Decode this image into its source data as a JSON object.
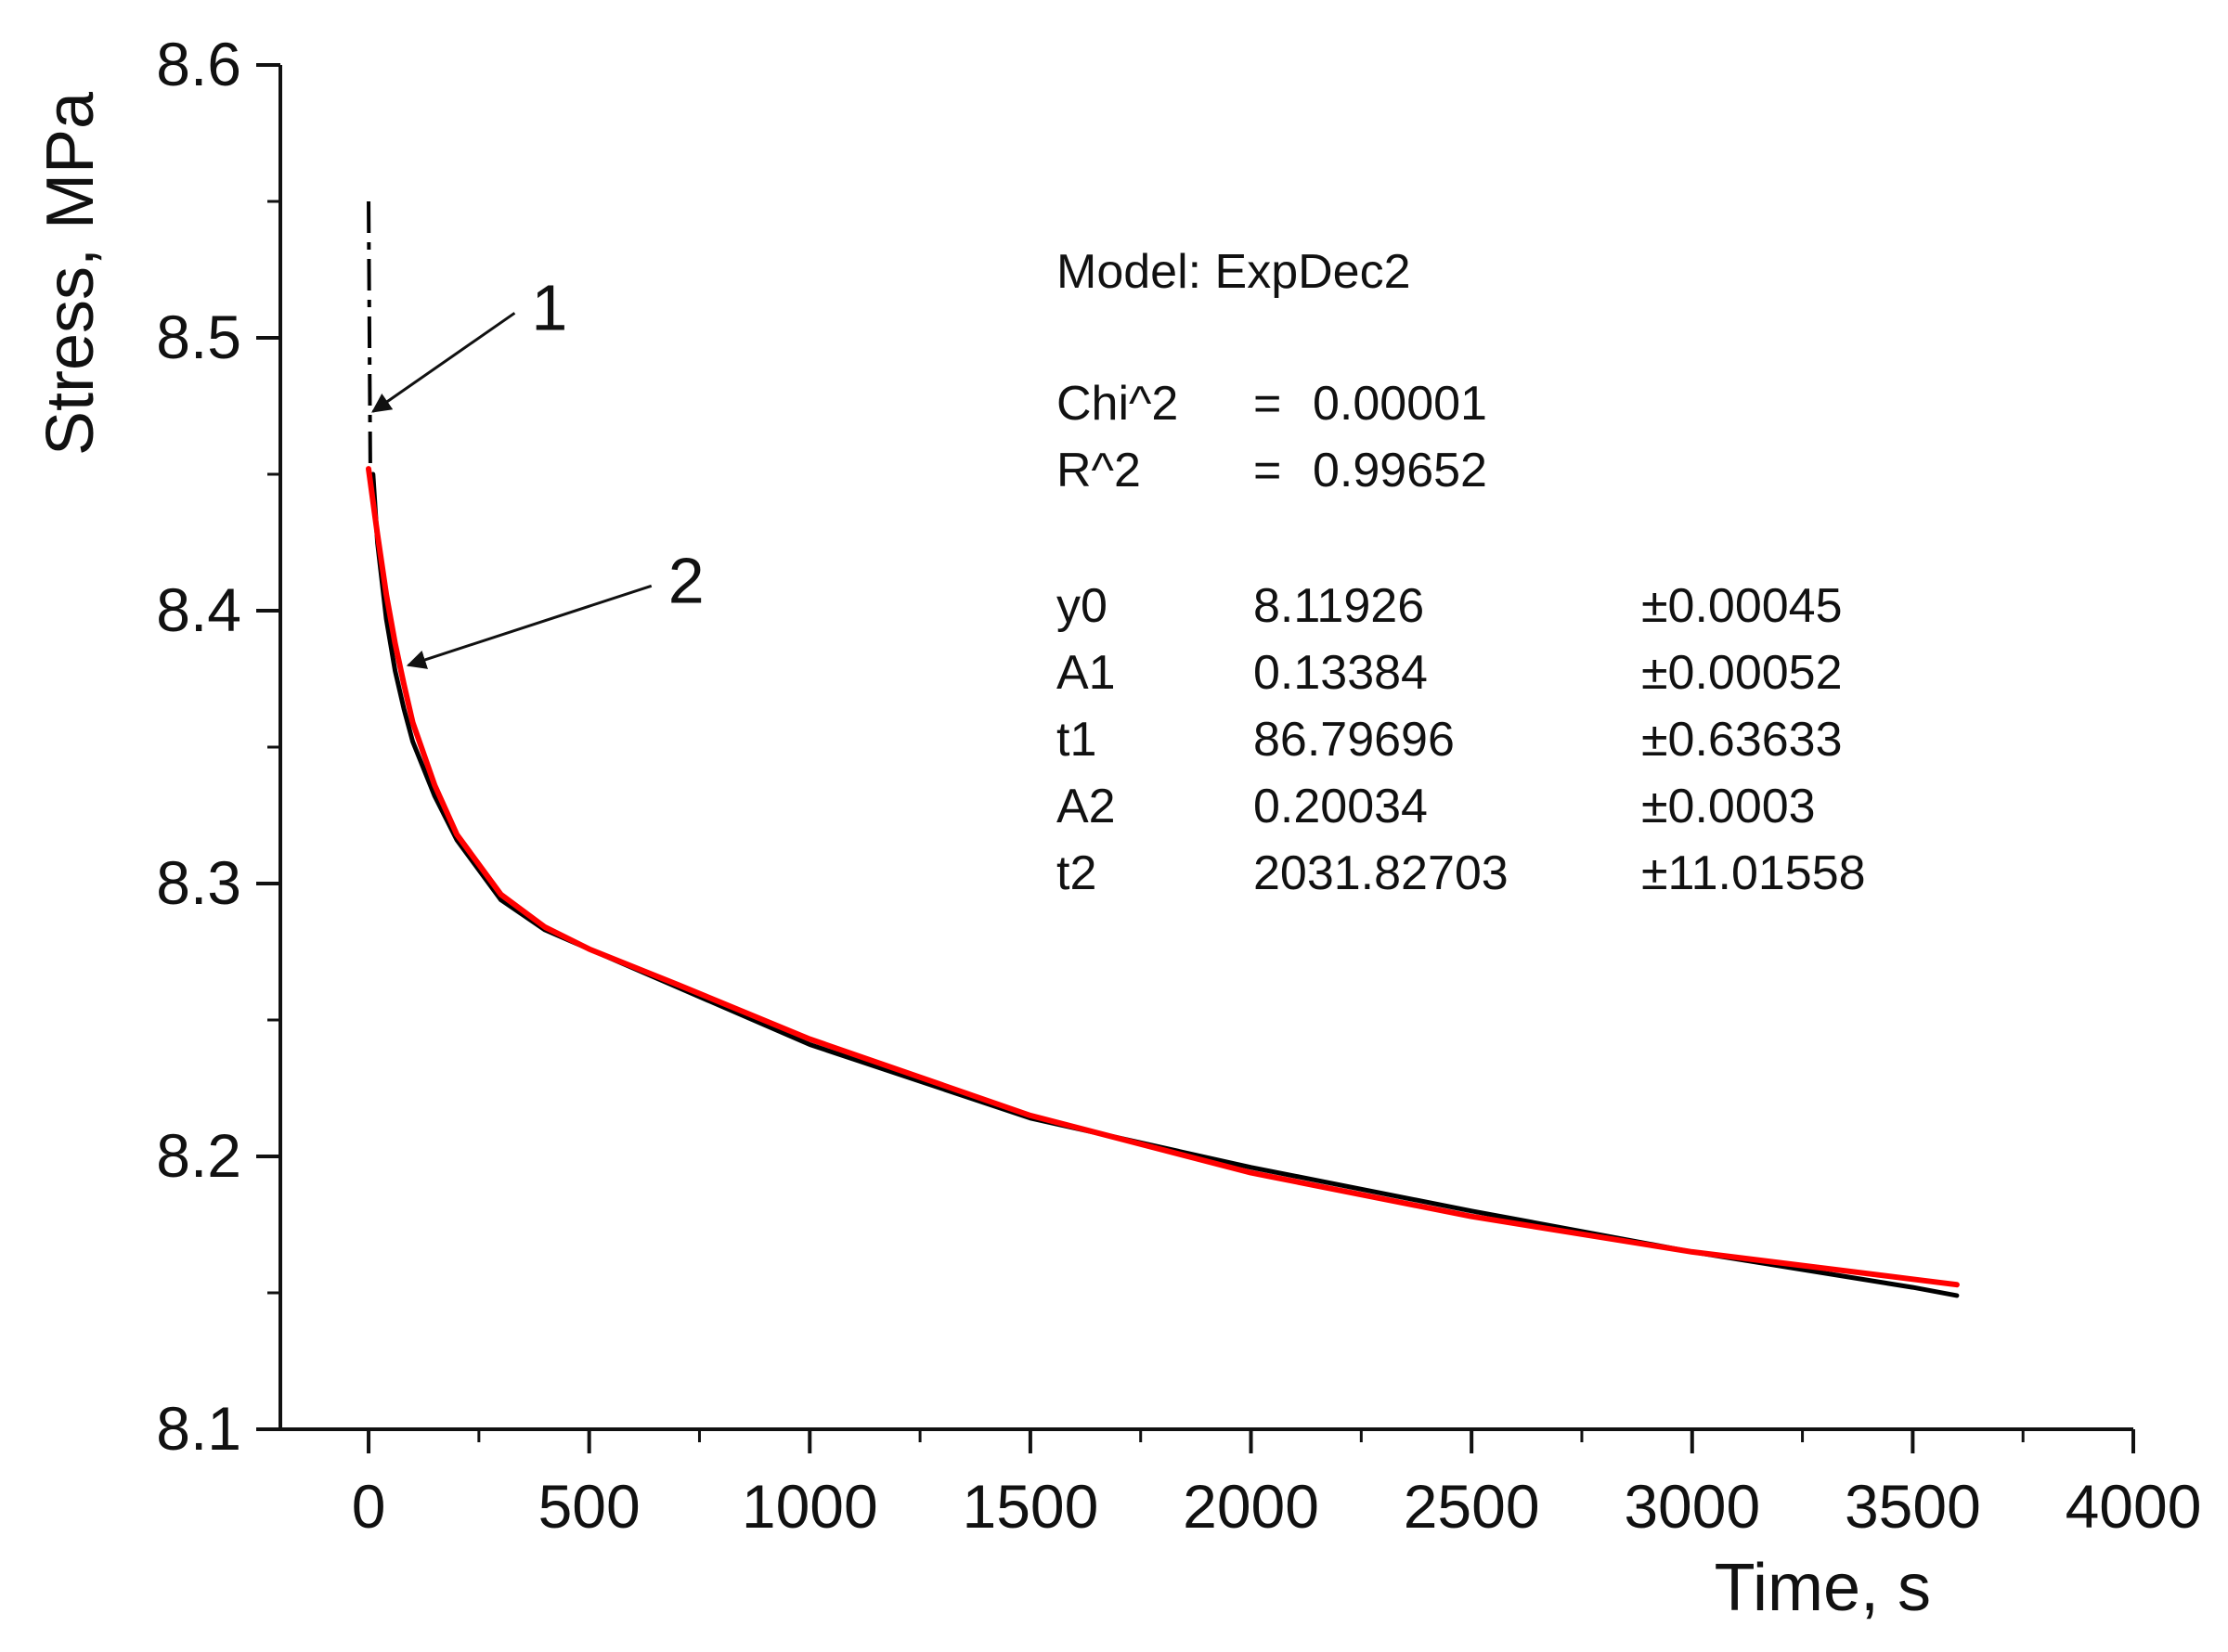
{
  "chart_data": {
    "type": "line",
    "title": "",
    "xlabel": "Time, s",
    "ylabel": "Stress, MPa",
    "xlim": [
      -200,
      4000
    ],
    "ylim": [
      8.1,
      8.6
    ],
    "x_ticks": [
      0,
      500,
      1000,
      1500,
      2000,
      2500,
      3000,
      3500,
      4000
    ],
    "x_tick_labels": [
      "0",
      "500",
      "1000",
      "1500",
      "2000",
      "2500",
      "3000",
      "3500",
      "4000"
    ],
    "y_ticks": [
      8.1,
      8.2,
      8.3,
      8.4,
      8.5,
      8.6
    ],
    "y_tick_labels": [
      "8.1",
      "8.2",
      "8.3",
      "8.4",
      "8.5",
      "8.6"
    ],
    "grid": false,
    "series": [
      {
        "name": "1",
        "label": "1",
        "color": "#000000",
        "x": [
          0,
          5,
          10,
          20,
          40,
          60,
          80,
          100,
          150,
          200,
          300,
          400,
          500,
          700,
          1000,
          1500,
          2000,
          2500,
          3000,
          3500,
          3600
        ],
        "y": [
          8.55,
          8.49,
          8.45,
          8.425,
          8.397,
          8.378,
          8.364,
          8.352,
          8.332,
          8.316,
          8.294,
          8.283,
          8.276,
          8.262,
          8.241,
          8.214,
          8.196,
          8.18,
          8.165,
          8.152,
          8.149
        ],
        "dashed_segment": {
          "x_range": [
            0,
            10
          ],
          "y_range": [
            8.45,
            8.55
          ]
        }
      },
      {
        "name": "2",
        "label": "2",
        "color": "#ff0000",
        "x": [
          0,
          20,
          40,
          60,
          80,
          100,
          150,
          200,
          300,
          400,
          500,
          700,
          1000,
          1500,
          2000,
          2500,
          3000,
          3500,
          3600
        ],
        "y": [
          8.452,
          8.428,
          8.406,
          8.388,
          8.373,
          8.359,
          8.336,
          8.318,
          8.296,
          8.284,
          8.276,
          8.263,
          8.243,
          8.215,
          8.194,
          8.178,
          8.165,
          8.155,
          8.153
        ]
      }
    ],
    "annotations": [
      {
        "text": "1",
        "target_series": "1",
        "arrow_to": {
          "x": 10,
          "y": 8.473
        },
        "text_at": {
          "x": 390,
          "y": 8.505
        }
      },
      {
        "text": "2",
        "target_series": "2",
        "arrow_to": {
          "x": 90,
          "y": 8.38
        },
        "text_at": {
          "x": 700,
          "y": 8.405
        }
      }
    ],
    "fit_legend": {
      "model_line": "Model: ExpDec2",
      "stats": [
        {
          "name": "Chi^2",
          "eq": "=",
          "value": "0.00001"
        },
        {
          "name": "R^2",
          "eq": "=",
          "value": "0.99652"
        }
      ],
      "params": [
        {
          "name": "y0",
          "value": "8.11926",
          "error": "±0.00045"
        },
        {
          "name": "A1",
          "value": "0.13384",
          "error": "±0.00052"
        },
        {
          "name": "t1",
          "value": "86.79696",
          "error": "±0.63633"
        },
        {
          "name": "A2",
          "value": "0.20034",
          "error": "±0.0003"
        },
        {
          "name": "t2",
          "value": "2031.82703",
          "error": "±11.01558"
        }
      ]
    }
  }
}
